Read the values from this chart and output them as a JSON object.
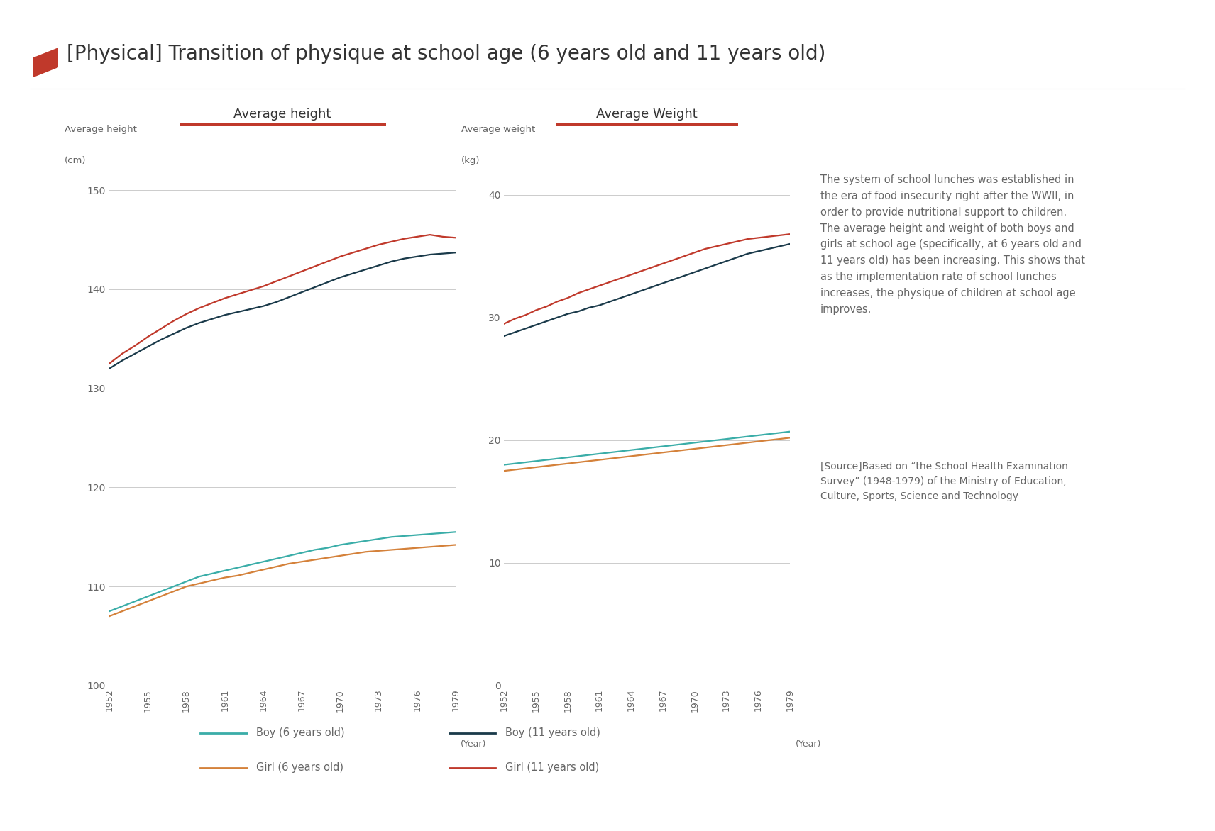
{
  "title": "[Physical] Transition of physique at school age (6 years old and 11 years old)",
  "years": [
    1952,
    1953,
    1954,
    1955,
    1956,
    1957,
    1958,
    1959,
    1960,
    1961,
    1962,
    1963,
    1964,
    1965,
    1966,
    1967,
    1968,
    1969,
    1970,
    1971,
    1972,
    1973,
    1974,
    1975,
    1976,
    1977,
    1978,
    1979
  ],
  "height_boy6": [
    107.5,
    108.0,
    108.5,
    109.0,
    109.5,
    110.0,
    110.5,
    111.0,
    111.3,
    111.6,
    111.9,
    112.2,
    112.5,
    112.8,
    113.1,
    113.4,
    113.7,
    113.9,
    114.2,
    114.4,
    114.6,
    114.8,
    115.0,
    115.1,
    115.2,
    115.3,
    115.4,
    115.5
  ],
  "height_girl6": [
    107.0,
    107.5,
    108.0,
    108.5,
    109.0,
    109.5,
    110.0,
    110.3,
    110.6,
    110.9,
    111.1,
    111.4,
    111.7,
    112.0,
    112.3,
    112.5,
    112.7,
    112.9,
    113.1,
    113.3,
    113.5,
    113.6,
    113.7,
    113.8,
    113.9,
    114.0,
    114.1,
    114.2
  ],
  "height_boy11": [
    132.0,
    132.8,
    133.5,
    134.2,
    134.9,
    135.5,
    136.1,
    136.6,
    137.0,
    137.4,
    137.7,
    138.0,
    138.3,
    138.7,
    139.2,
    139.7,
    140.2,
    140.7,
    141.2,
    141.6,
    142.0,
    142.4,
    142.8,
    143.1,
    143.3,
    143.5,
    143.6,
    143.7
  ],
  "height_girl11": [
    132.5,
    133.5,
    134.3,
    135.2,
    136.0,
    136.8,
    137.5,
    138.1,
    138.6,
    139.1,
    139.5,
    139.9,
    140.3,
    140.8,
    141.3,
    141.8,
    142.3,
    142.8,
    143.3,
    143.7,
    144.1,
    144.5,
    144.8,
    145.1,
    145.3,
    145.5,
    145.3,
    145.2
  ],
  "weight_boy6": [
    18.0,
    18.1,
    18.2,
    18.3,
    18.4,
    18.5,
    18.6,
    18.7,
    18.8,
    18.9,
    19.0,
    19.1,
    19.2,
    19.3,
    19.4,
    19.5,
    19.6,
    19.7,
    19.8,
    19.9,
    20.0,
    20.1,
    20.2,
    20.3,
    20.4,
    20.5,
    20.6,
    20.7
  ],
  "weight_girl6": [
    17.5,
    17.6,
    17.7,
    17.8,
    17.9,
    18.0,
    18.1,
    18.2,
    18.3,
    18.4,
    18.5,
    18.6,
    18.7,
    18.8,
    18.9,
    19.0,
    19.1,
    19.2,
    19.3,
    19.4,
    19.5,
    19.6,
    19.7,
    19.8,
    19.9,
    20.0,
    20.1,
    20.2
  ],
  "weight_boy11": [
    28.5,
    28.8,
    29.1,
    29.4,
    29.7,
    30.0,
    30.3,
    30.5,
    30.8,
    31.0,
    31.3,
    31.6,
    31.9,
    32.2,
    32.5,
    32.8,
    33.1,
    33.4,
    33.7,
    34.0,
    34.3,
    34.6,
    34.9,
    35.2,
    35.4,
    35.6,
    35.8,
    36.0
  ],
  "weight_girl11": [
    29.5,
    29.9,
    30.2,
    30.6,
    30.9,
    31.3,
    31.6,
    32.0,
    32.3,
    32.6,
    32.9,
    33.2,
    33.5,
    33.8,
    34.1,
    34.4,
    34.7,
    35.0,
    35.3,
    35.6,
    35.8,
    36.0,
    36.2,
    36.4,
    36.5,
    36.6,
    36.7,
    36.8
  ],
  "color_boy6": "#3aada8",
  "color_girl6": "#d4813a",
  "color_boy11": "#1a3a4a",
  "color_girl11": "#c0392b",
  "bg_color": "#ffffff",
  "text_color": "#666666",
  "title_color": "#333333",
  "red_accent": "#c0392b",
  "grid_color": "#cccccc",
  "annotation_text": "The system of school lunches was established in\nthe era of food insecurity right after the WWII, in\norder to provide nutritional support to children.\nThe average height and weight of both boys and\ngirls at school age (specifically, at 6 years old and\n11 years old) has been increasing. This shows that\nas the implementation rate of school lunches\nincreases, the physique of children at school age\nimproves.",
  "source_text": "[Source]Based on “the School Health Examination\nSurvey” (1948-1979) of the Ministry of Education,\nCulture, Sports, Science and Technology",
  "height_chart_title": "Average height",
  "weight_chart_title": "Average Weight",
  "height_ylabel1": "Average height",
  "height_ylabel2": "(cm)",
  "weight_ylabel1": "Average weight",
  "weight_ylabel2": "(kg)",
  "height_yticks": [
    100,
    110,
    120,
    130,
    140,
    150
  ],
  "weight_yticks": [
    0,
    10,
    20,
    30,
    40
  ],
  "xticks": [
    1952,
    1955,
    1958,
    1961,
    1964,
    1967,
    1970,
    1973,
    1976,
    1979
  ],
  "legend_boy6": "Boy (6 years old)",
  "legend_girl6": "Girl (6 years old)",
  "legend_boy11": "Boy (11 years old)",
  "legend_girl11": "Girl (11 years old)"
}
